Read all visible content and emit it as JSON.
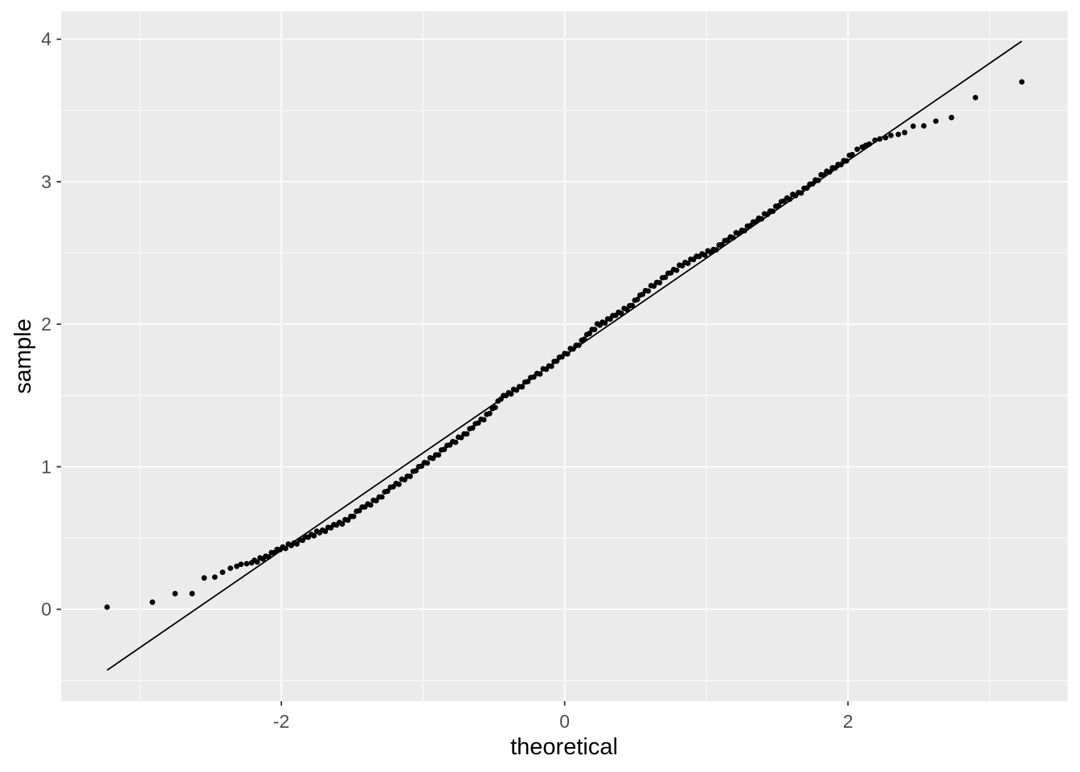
{
  "chart_data": {
    "type": "scatter",
    "title": "",
    "xlabel": "theoretical",
    "ylabel": "sample",
    "legend": "none",
    "grid": "on",
    "xlim": [
      -3.555,
      3.551
    ],
    "ylim": [
      -0.645,
      4.196
    ],
    "x_ticks": [
      {
        "value": -2,
        "label": "-2"
      },
      {
        "value": 0,
        "label": "0"
      },
      {
        "value": 2,
        "label": "2"
      }
    ],
    "y_ticks": [
      {
        "value": 0,
        "label": "0"
      },
      {
        "value": 1,
        "label": "1"
      },
      {
        "value": 2,
        "label": "2"
      },
      {
        "value": 3,
        "label": "3"
      },
      {
        "value": 4,
        "label": "4"
      }
    ],
    "x_minor_gridlines": [
      -3,
      -1,
      1,
      3
    ],
    "y_minor_gridlines": [
      -0.5,
      0.5,
      1.5,
      2.5,
      3.5
    ],
    "qq_line": {
      "x1": -3.23,
      "y1": -0.427,
      "x2": 3.227,
      "y2": 3.986,
      "slope": 0.684,
      "intercept": 1.78
    },
    "n_points_estimate": 808,
    "left_tail_points": [
      [
        -3.23,
        0.015
      ],
      [
        -2.91,
        0.05
      ],
      [
        -2.75,
        0.11
      ],
      [
        -2.63,
        0.11
      ],
      [
        -2.545,
        0.22
      ],
      [
        -2.47,
        0.226
      ],
      [
        -2.415,
        0.26
      ],
      [
        -2.36,
        0.288
      ],
      [
        -2.315,
        0.302
      ],
      [
        -2.285,
        0.316
      ],
      [
        -2.245,
        0.32
      ]
    ],
    "right_tail_points": [
      [
        2.065,
        3.228
      ],
      [
        2.1,
        3.243
      ],
      [
        2.125,
        3.255
      ],
      [
        2.15,
        3.264
      ],
      [
        2.19,
        3.291
      ],
      [
        2.225,
        3.3
      ],
      [
        2.265,
        3.309
      ],
      [
        2.303,
        3.325
      ],
      [
        2.355,
        3.332
      ],
      [
        2.4,
        3.345
      ],
      [
        2.46,
        3.39
      ],
      [
        2.535,
        3.392
      ],
      [
        2.62,
        3.425
      ],
      [
        2.73,
        3.45
      ],
      [
        2.9,
        3.59
      ],
      [
        3.227,
        3.7
      ]
    ],
    "band_knots": [
      [
        -2.21,
        0.326
      ],
      [
        -2.15,
        0.348
      ],
      [
        -2.05,
        0.4
      ],
      [
        -1.95,
        0.445
      ],
      [
        -1.85,
        0.487
      ],
      [
        -1.75,
        0.535
      ],
      [
        -1.65,
        0.575
      ],
      [
        -1.55,
        0.616
      ],
      [
        -1.45,
        0.695
      ],
      [
        -1.35,
        0.752
      ],
      [
        -1.25,
        0.832
      ],
      [
        -1.15,
        0.9
      ],
      [
        -1.05,
        0.975
      ],
      [
        -0.95,
        1.05
      ],
      [
        -0.85,
        1.125
      ],
      [
        -0.75,
        1.195
      ],
      [
        -0.65,
        1.275
      ],
      [
        -0.55,
        1.355
      ],
      [
        -0.45,
        1.478
      ],
      [
        -0.36,
        1.53
      ],
      [
        -0.24,
        1.615
      ],
      [
        -0.13,
        1.69
      ],
      [
        0.0,
        1.785
      ],
      [
        0.12,
        1.88
      ],
      [
        0.23,
        1.99
      ],
      [
        0.34,
        2.05
      ],
      [
        0.44,
        2.11
      ],
      [
        0.55,
        2.21
      ],
      [
        0.65,
        2.29
      ],
      [
        0.75,
        2.36
      ],
      [
        0.85,
        2.43
      ],
      [
        0.95,
        2.475
      ],
      [
        1.05,
        2.52
      ],
      [
        1.15,
        2.59
      ],
      [
        1.25,
        2.655
      ],
      [
        1.35,
        2.72
      ],
      [
        1.45,
        2.79
      ],
      [
        1.55,
        2.865
      ],
      [
        1.65,
        2.92
      ],
      [
        1.75,
        2.985
      ],
      [
        1.85,
        3.07
      ],
      [
        1.95,
        3.12
      ],
      [
        2.03,
        3.19
      ]
    ],
    "band_render_step": 0.02,
    "band_jitter_s": [
      0,
      0.01,
      -0.009,
      0.013,
      -0.006,
      0.004,
      -0.012,
      0.008,
      -0.003,
      0.011
    ],
    "colors": {
      "panel_bg": "#EBEBEB",
      "grid": "#FFFFFF",
      "point": "#000000",
      "line": "#000000",
      "tick_text": "#4D4D4D",
      "tick_mark": "#333333",
      "axis_title": "#000000",
      "outer_bg": "#FFFFFF"
    }
  }
}
